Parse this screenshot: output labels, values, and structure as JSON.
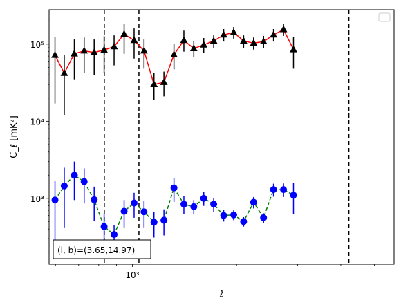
{
  "chart_data": {
    "type": "scatter",
    "x_scale": "log",
    "y_scale": "log",
    "xlim": [
      575,
      5700
    ],
    "ylim": [
      140,
      280000
    ],
    "xlabel": "ℓ",
    "ylabel": "C_ℓ [mK²]",
    "x_ticks": [
      {
        "value": 1000,
        "label": "10³"
      }
    ],
    "y_ticks": [
      {
        "value": 1000,
        "label": "10³"
      },
      {
        "value": 10000,
        "label": "10⁴"
      },
      {
        "value": 100000,
        "label": "10⁵"
      }
    ],
    "legend": {
      "placement": "upper right",
      "entries": []
    },
    "annotation": "(l, b)=(3.65,14.97)",
    "vlines": [
      830,
      1045,
      4220
    ],
    "series": [
      {
        "marker": "triangle",
        "marker_color": "#000000",
        "line_color": "#ff0000",
        "line_style": "solid",
        "points": [
          {
            "x": 598,
            "y": 72000,
            "lo": 17000,
            "hi": 125000
          },
          {
            "x": 636,
            "y": 42000,
            "lo": 12000,
            "hi": 72000
          },
          {
            "x": 680,
            "y": 75000,
            "lo": 35000,
            "hi": 115000
          },
          {
            "x": 726,
            "y": 82000,
            "lo": 42000,
            "hi": 122000
          },
          {
            "x": 776,
            "y": 78000,
            "lo": 40000,
            "hi": 115000
          },
          {
            "x": 829,
            "y": 84000,
            "lo": 42000,
            "hi": 127000
          },
          {
            "x": 886,
            "y": 93000,
            "lo": 53000,
            "hi": 130000
          },
          {
            "x": 947,
            "y": 135000,
            "lo": 75000,
            "hi": 185000
          },
          {
            "x": 1012,
            "y": 112000,
            "lo": 65000,
            "hi": 160000
          },
          {
            "x": 1081,
            "y": 82000,
            "lo": 48000,
            "hi": 115000
          },
          {
            "x": 1155,
            "y": 30000,
            "lo": 19000,
            "hi": 42000
          },
          {
            "x": 1234,
            "y": 32000,
            "lo": 21000,
            "hi": 44000
          },
          {
            "x": 1319,
            "y": 73000,
            "lo": 47000,
            "hi": 100000
          },
          {
            "x": 1409,
            "y": 112000,
            "lo": 80000,
            "hi": 150000
          },
          {
            "x": 1505,
            "y": 88000,
            "lo": 68000,
            "hi": 110000
          },
          {
            "x": 1608,
            "y": 98000,
            "lo": 77000,
            "hi": 120000
          },
          {
            "x": 1718,
            "y": 110000,
            "lo": 88000,
            "hi": 132000
          },
          {
            "x": 1836,
            "y": 132000,
            "lo": 108000,
            "hi": 157000
          },
          {
            "x": 1962,
            "y": 142000,
            "lo": 118000,
            "hi": 167000
          },
          {
            "x": 2096,
            "y": 110000,
            "lo": 90000,
            "hi": 130000
          },
          {
            "x": 2240,
            "y": 103000,
            "lo": 85000,
            "hi": 122000
          },
          {
            "x": 2393,
            "y": 108000,
            "lo": 88000,
            "hi": 128000
          },
          {
            "x": 2557,
            "y": 132000,
            "lo": 108000,
            "hi": 157000
          },
          {
            "x": 2733,
            "y": 155000,
            "lo": 128000,
            "hi": 183000
          },
          {
            "x": 2920,
            "y": 85000,
            "lo": 48000,
            "hi": 123000
          }
        ]
      },
      {
        "marker": "circle",
        "marker_color": "#0000ff",
        "line_color": "#008000",
        "line_style": "dashed",
        "points": [
          {
            "x": 598,
            "y": 950,
            "lo": 240,
            "hi": 1680
          },
          {
            "x": 636,
            "y": 1450,
            "lo": 420,
            "hi": 2500
          },
          {
            "x": 680,
            "y": 2000,
            "lo": 950,
            "hi": 3000
          },
          {
            "x": 726,
            "y": 1650,
            "lo": 860,
            "hi": 2450
          },
          {
            "x": 776,
            "y": 960,
            "lo": 510,
            "hi": 1420
          },
          {
            "x": 829,
            "y": 430,
            "lo": 230,
            "hi": 640
          },
          {
            "x": 886,
            "y": 340,
            "lo": 230,
            "hi": 450
          },
          {
            "x": 947,
            "y": 680,
            "lo": 420,
            "hi": 950
          },
          {
            "x": 1012,
            "y": 870,
            "lo": 560,
            "hi": 1180
          },
          {
            "x": 1081,
            "y": 670,
            "lo": 420,
            "hi": 920
          },
          {
            "x": 1155,
            "y": 490,
            "lo": 310,
            "hi": 670
          },
          {
            "x": 1234,
            "y": 520,
            "lo": 330,
            "hi": 720
          },
          {
            "x": 1319,
            "y": 1370,
            "lo": 900,
            "hi": 1850
          },
          {
            "x": 1409,
            "y": 840,
            "lo": 620,
            "hi": 1070
          },
          {
            "x": 1505,
            "y": 780,
            "lo": 620,
            "hi": 950
          },
          {
            "x": 1608,
            "y": 1000,
            "lo": 800,
            "hi": 1200
          },
          {
            "x": 1718,
            "y": 840,
            "lo": 670,
            "hi": 1010
          },
          {
            "x": 1836,
            "y": 600,
            "lo": 500,
            "hi": 700
          },
          {
            "x": 1962,
            "y": 610,
            "lo": 520,
            "hi": 700
          },
          {
            "x": 2096,
            "y": 500,
            "lo": 430,
            "hi": 570
          },
          {
            "x": 2240,
            "y": 890,
            "lo": 740,
            "hi": 1040
          },
          {
            "x": 2393,
            "y": 560,
            "lo": 480,
            "hi": 640
          },
          {
            "x": 2557,
            "y": 1300,
            "lo": 1050,
            "hi": 1550
          },
          {
            "x": 2733,
            "y": 1300,
            "lo": 1040,
            "hi": 1560
          },
          {
            "x": 2920,
            "y": 1100,
            "lo": 620,
            "hi": 1580
          }
        ]
      }
    ]
  }
}
